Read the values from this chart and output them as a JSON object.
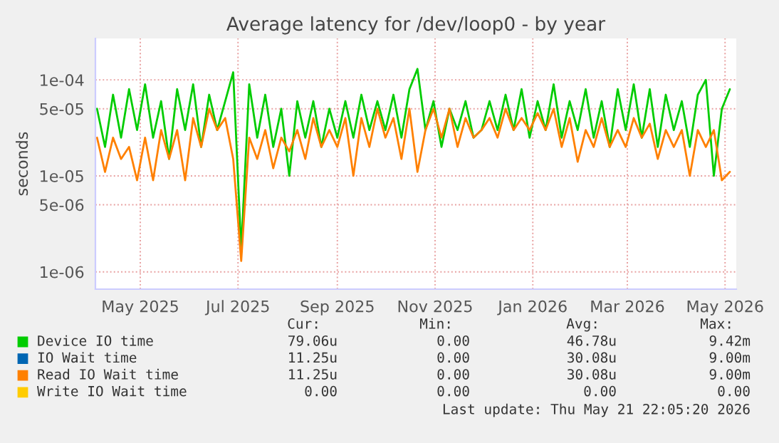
{
  "chart_data": {
    "type": "line",
    "title": "Average latency for /dev/loop0 - by year",
    "ylabel": "seconds",
    "log": true,
    "grid": true,
    "legend": "bottom",
    "x": [
      "2025-04-04",
      "2025-04-09",
      "2025-04-14",
      "2025-04-19",
      "2025-04-24",
      "2025-04-29",
      "2025-05-04",
      "2025-05-09",
      "2025-05-14",
      "2025-05-19",
      "2025-05-24",
      "2025-05-29",
      "2025-06-03",
      "2025-06-08",
      "2025-06-13",
      "2025-06-18",
      "2025-06-23",
      "2025-06-28",
      "2025-07-03",
      "2025-07-08",
      "2025-07-13",
      "2025-07-18",
      "2025-07-23",
      "2025-07-28",
      "2025-08-02",
      "2025-08-07",
      "2025-08-12",
      "2025-08-17",
      "2025-08-22",
      "2025-08-27",
      "2025-09-01",
      "2025-09-06",
      "2025-09-11",
      "2025-09-16",
      "2025-09-21",
      "2025-09-26",
      "2025-10-01",
      "2025-10-06",
      "2025-10-11",
      "2025-10-16",
      "2025-10-21",
      "2025-10-26",
      "2025-10-31",
      "2025-11-05",
      "2025-11-10",
      "2025-11-15",
      "2025-11-20",
      "2025-11-25",
      "2025-11-30",
      "2025-12-05",
      "2025-12-10",
      "2025-12-15",
      "2025-12-20",
      "2025-12-25",
      "2025-12-30",
      "2026-01-04",
      "2026-01-09",
      "2026-01-14",
      "2026-01-19",
      "2026-01-24",
      "2026-01-29",
      "2026-02-03",
      "2026-02-08",
      "2026-02-13",
      "2026-02-18",
      "2026-02-23",
      "2026-02-28",
      "2026-03-05",
      "2026-03-10",
      "2026-03-15",
      "2026-03-20",
      "2026-03-25",
      "2026-03-30",
      "2026-04-04",
      "2026-04-09",
      "2026-04-14",
      "2026-04-19",
      "2026-04-24",
      "2026-04-29",
      "2026-05-04"
    ],
    "series": [
      {
        "name": "Device IO time",
        "color": "#00cc00",
        "values": [
          5e-05,
          2e-05,
          7e-05,
          2.5e-05,
          8e-05,
          3e-05,
          9e-05,
          2.5e-05,
          6e-05,
          1.5e-05,
          8e-05,
          3e-05,
          9e-05,
          2e-05,
          7e-05,
          3e-05,
          6e-05,
          0.00012,
          1.7e-06,
          9e-05,
          2.5e-05,
          7e-05,
          2e-05,
          5e-05,
          1e-05,
          6e-05,
          2.5e-05,
          6e-05,
          2e-05,
          5e-05,
          2.5e-05,
          6e-05,
          2.5e-05,
          7e-05,
          3e-05,
          6e-05,
          3e-05,
          7e-05,
          2.5e-05,
          8e-05,
          0.00013,
          3e-05,
          6e-05,
          2e-05,
          5e-05,
          3e-05,
          6e-05,
          2.5e-05,
          3e-05,
          6e-05,
          3e-05,
          7e-05,
          3e-05,
          8e-05,
          2.5e-05,
          6e-05,
          3e-05,
          9e-05,
          2.5e-05,
          6e-05,
          3e-05,
          8e-05,
          2.5e-05,
          6e-05,
          2e-05,
          8e-05,
          3e-05,
          9e-05,
          2.5e-05,
          8e-05,
          2e-05,
          7e-05,
          3e-05,
          6e-05,
          2e-05,
          7e-05,
          0.0001,
          1e-05,
          5e-05,
          8e-05
        ]
      },
      {
        "name": "IO Wait time",
        "color": "#0066b3",
        "values": [
          null,
          null,
          null,
          null,
          null,
          null,
          null,
          null,
          null,
          null,
          null,
          null,
          null,
          null,
          null,
          null,
          null,
          null,
          null,
          null,
          null,
          null,
          null,
          null,
          null,
          null,
          null,
          null,
          null,
          null,
          null,
          null,
          null,
          null,
          null,
          null,
          null,
          null,
          null,
          null,
          null,
          null,
          null,
          null,
          null,
          null,
          null,
          null,
          null,
          null,
          null,
          null,
          null,
          null,
          null,
          null,
          null,
          null,
          null,
          null,
          null,
          null,
          null,
          null,
          null,
          null,
          null,
          null,
          null,
          null,
          null,
          null,
          null,
          null,
          null,
          null,
          null,
          null,
          null,
          null
        ]
      },
      {
        "name": "Read IO Wait time",
        "color": "#ff8000",
        "values": [
          2.5e-05,
          1.1e-05,
          2.5e-05,
          1.5e-05,
          2e-05,
          9e-06,
          2.5e-05,
          9e-06,
          3e-05,
          1.5e-05,
          3e-05,
          9e-06,
          4e-05,
          2e-05,
          5e-05,
          3e-05,
          4e-05,
          1.5e-05,
          1.3e-06,
          2.5e-05,
          1.5e-05,
          3e-05,
          1.2e-05,
          2.5e-05,
          1.8e-05,
          3e-05,
          1.5e-05,
          4e-05,
          2e-05,
          3e-05,
          2e-05,
          4e-05,
          1e-05,
          4e-05,
          2e-05,
          5e-05,
          2.5e-05,
          4e-05,
          1.5e-05,
          5e-05,
          1.1e-05,
          3e-05,
          5e-05,
          2.5e-05,
          5e-05,
          2e-05,
          4e-05,
          2.5e-05,
          3e-05,
          4e-05,
          2.5e-05,
          5e-05,
          3e-05,
          4e-05,
          3e-05,
          4.5e-05,
          3e-05,
          5e-05,
          2e-05,
          4e-05,
          1.4e-05,
          3e-05,
          2e-05,
          4e-05,
          2e-05,
          3e-05,
          2e-05,
          4e-05,
          2.5e-05,
          3.5e-05,
          1.5e-05,
          3e-05,
          2e-05,
          3e-05,
          1e-05,
          3e-05,
          2e-05,
          3e-05,
          9e-06,
          1.1e-05
        ]
      },
      {
        "name": "Write IO Wait time",
        "color": "#ffcc00",
        "values": [
          null,
          null,
          null,
          null,
          null,
          null,
          null,
          null,
          null,
          null,
          null,
          null,
          null,
          null,
          null,
          null,
          null,
          null,
          null,
          null,
          null,
          null,
          null,
          null,
          null,
          null,
          null,
          null,
          null,
          null,
          null,
          null,
          null,
          null,
          null,
          null,
          null,
          null,
          null,
          null,
          null,
          null,
          null,
          null,
          null,
          null,
          null,
          null,
          null,
          null,
          null,
          null,
          null,
          null,
          null,
          null,
          null,
          null,
          null,
          null,
          null,
          null,
          null,
          null,
          null,
          null,
          null,
          null,
          null,
          null,
          null,
          null,
          null,
          null,
          null,
          null,
          null,
          null,
          null,
          null
        ]
      }
    ],
    "xlim": [
      "2025-04-03",
      "2026-05-08"
    ],
    "xticks": [
      {
        "value": "2025-05-01",
        "label": "May 2025"
      },
      {
        "value": "2025-07-01",
        "label": "Jul 2025"
      },
      {
        "value": "2025-09-01",
        "label": "Sep 2025"
      },
      {
        "value": "2025-11-01",
        "label": "Nov 2025"
      },
      {
        "value": "2026-01-01",
        "label": "Jan 2026"
      },
      {
        "value": "2026-03-01",
        "label": "Mar 2026"
      },
      {
        "value": "2026-05-01",
        "label": "May 2026"
      }
    ],
    "ylim": [
      6.6e-07,
      0.00027
    ],
    "yticks": [
      {
        "value": 1e-06,
        "label": "1e-06"
      },
      {
        "value": 5e-06,
        "label": "5e-06"
      },
      {
        "value": 1e-05,
        "label": "1e-05"
      },
      {
        "value": 5e-05,
        "label": "5e-05"
      },
      {
        "value": 0.0001,
        "label": "1e-04"
      }
    ],
    "annotations": [
      "Cur:",
      "Min:",
      "Avg:",
      "Max:",
      "79.06u",
      "0.00",
      "46.78u",
      "9.42m",
      "11.25u",
      "0.00",
      "30.08u",
      "9.00m",
      "11.25u",
      "0.00",
      "30.08u",
      "9.00m",
      "0.00",
      "0.00",
      "0.00",
      "0.00",
      "Last update: Thu May 21 22:05:20 2026"
    ]
  }
}
